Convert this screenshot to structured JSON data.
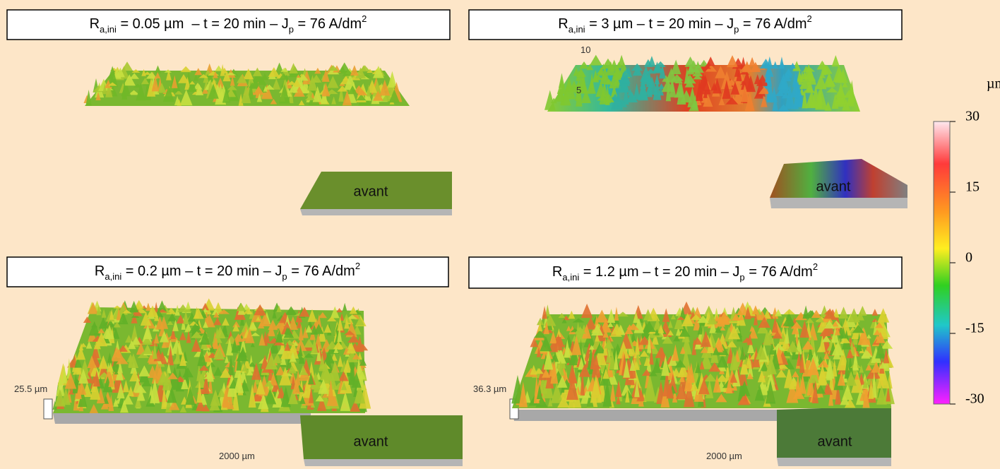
{
  "panels": [
    {
      "title": {
        "parts": [
          "R",
          "a,ini",
          " = 0.05 µm  – t = 20 min – J",
          "p",
          " = 76 A/dm",
          "2"
        ]
      },
      "inset_label": "avant",
      "labels": []
    },
    {
      "title": {
        "parts": [
          "R",
          "a,ini",
          " = 3 µm – t = 20 min – J",
          "p",
          " = 76 A/dm",
          "2"
        ]
      },
      "inset_label": "avant",
      "labels": [
        "10",
        "5"
      ]
    },
    {
      "title": {
        "parts": [
          "R",
          "a,ini",
          " = 0.2 µm – t = 20 min – J",
          "p",
          " = 76 A/dm",
          "2"
        ]
      },
      "inset_label": "avant",
      "labels": [
        "25.5 µm",
        "2000 µm"
      ]
    },
    {
      "title": {
        "parts": [
          "R",
          "a,ini",
          " = 1.2 µm – t = 20 min – J",
          "p",
          " = 76 A/dm",
          "2"
        ]
      },
      "inset_label": "avant",
      "labels": [
        "36.3 µm",
        "2000 µm"
      ]
    }
  ],
  "colorbar": {
    "unit": "µm",
    "range": [
      -30,
      30
    ],
    "ticks": [
      30,
      15,
      0,
      -15,
      -30
    ]
  }
}
